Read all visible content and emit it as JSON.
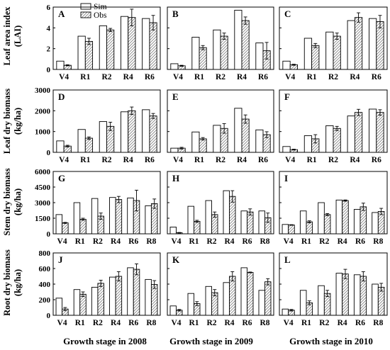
{
  "legend": {
    "sim": "Sim",
    "obs": "Obs"
  },
  "colors": {
    "sim_fill": "#ffffff",
    "obs_hatch": "#7f7f7f",
    "axis": "#000000"
  },
  "row_labels": [
    [
      "Leaf area index",
      "(LAI)"
    ],
    [
      "Leaf dry biomass",
      "(kg/ha)"
    ],
    [
      "Stem dry biomass",
      "(kg/ha)"
    ],
    [
      "Root dry biomass",
      "(kg/ha)"
    ]
  ],
  "column_xlabels": [
    "Growth stage in 2008",
    "Growth stage in 2009",
    "Growth stage in 2010"
  ],
  "chart_data": [
    {
      "type": "bar",
      "panel": "A",
      "row": 0,
      "col": 0,
      "categories": [
        "V4",
        "R1",
        "R2",
        "R4",
        "R6"
      ],
      "ylim": [
        0,
        6
      ],
      "yticks": [
        0,
        2,
        4,
        6
      ],
      "series": [
        {
          "name": "Sim",
          "values": [
            0.8,
            3.2,
            4.2,
            5.1,
            4.9
          ]
        },
        {
          "name": "Obs",
          "values": [
            0.4,
            2.7,
            3.8,
            5.0,
            4.5
          ],
          "error": [
            0.05,
            0.3,
            0.15,
            0.8,
            0.7
          ]
        }
      ]
    },
    {
      "type": "bar",
      "panel": "B",
      "row": 0,
      "col": 1,
      "categories": [
        "V4",
        "R1",
        "R2",
        "R4",
        "R6"
      ],
      "ylim": [
        0,
        6
      ],
      "yticks": [
        0,
        2,
        4,
        6
      ],
      "series": [
        {
          "name": "Sim",
          "values": [
            0.55,
            3.1,
            3.8,
            5.7,
            2.55
          ]
        },
        {
          "name": "Obs",
          "values": [
            0.35,
            2.1,
            3.2,
            4.7,
            1.8
          ],
          "error": [
            0.05,
            0.2,
            0.3,
            0.35,
            0.8
          ]
        }
      ]
    },
    {
      "type": "bar",
      "panel": "C",
      "row": 0,
      "col": 2,
      "categories": [
        "V4",
        "R1",
        "R2",
        "R4",
        "R6"
      ],
      "ylim": [
        0,
        6
      ],
      "yticks": [
        0,
        2,
        4,
        6
      ],
      "series": [
        {
          "name": "Sim",
          "values": [
            0.8,
            3.0,
            3.6,
            4.7,
            4.9
          ]
        },
        {
          "name": "Obs",
          "values": [
            0.45,
            2.3,
            3.2,
            5.0,
            4.6
          ],
          "error": [
            0.05,
            0.2,
            0.3,
            0.45,
            0.6
          ]
        }
      ]
    },
    {
      "type": "bar",
      "panel": "D",
      "row": 1,
      "col": 0,
      "categories": [
        "V4",
        "R1",
        "R2",
        "R4",
        "R6"
      ],
      "ylim": [
        0,
        3000
      ],
      "yticks": [
        0,
        1000,
        2000,
        3000
      ],
      "series": [
        {
          "name": "Sim",
          "values": [
            550,
            1100,
            1480,
            1950,
            2050
          ]
        },
        {
          "name": "Obs",
          "values": [
            300,
            680,
            1250,
            2000,
            1750
          ],
          "error": [
            40,
            60,
            200,
            180,
            120
          ]
        }
      ]
    },
    {
      "type": "bar",
      "panel": "E",
      "row": 1,
      "col": 1,
      "categories": [
        "V4",
        "R1",
        "R2",
        "R4",
        "R6"
      ],
      "ylim": [
        0,
        3000
      ],
      "yticks": [
        0,
        1000,
        2000,
        3000
      ],
      "series": [
        {
          "name": "Sim",
          "values": [
            200,
            980,
            1300,
            2120,
            1080
          ]
        },
        {
          "name": "Obs",
          "values": [
            200,
            650,
            1150,
            1600,
            850
          ],
          "error": [
            40,
            60,
            230,
            200,
            140
          ]
        }
      ]
    },
    {
      "type": "bar",
      "panel": "F",
      "row": 1,
      "col": 2,
      "categories": [
        "V4",
        "R1",
        "R2",
        "R4",
        "R6"
      ],
      "ylim": [
        0,
        3000
      ],
      "yticks": [
        0,
        1000,
        2000,
        3000
      ],
      "series": [
        {
          "name": "Sim",
          "values": [
            280,
            800,
            1280,
            1750,
            2080
          ]
        },
        {
          "name": "Obs",
          "values": [
            130,
            650,
            1150,
            1920,
            1920
          ],
          "error": [
            20,
            200,
            100,
            150,
            130
          ]
        }
      ]
    },
    {
      "type": "bar",
      "panel": "G",
      "row": 2,
      "col": 0,
      "categories": [
        "V4",
        "R1",
        "R2",
        "R4",
        "R6",
        "R8"
      ],
      "ylim": [
        0,
        6000
      ],
      "yticks": [
        0,
        1500,
        3000,
        4500,
        6000
      ],
      "series": [
        {
          "name": "Sim",
          "values": [
            1850,
            3000,
            3400,
            3500,
            3450,
            2700
          ]
        },
        {
          "name": "Obs",
          "values": [
            1050,
            1400,
            1700,
            3300,
            3200,
            2900
          ],
          "error": [
            50,
            100,
            300,
            300,
            1000,
            450
          ]
        }
      ]
    },
    {
      "type": "bar",
      "panel": "H",
      "row": 2,
      "col": 1,
      "categories": [
        "V4",
        "R1",
        "R2",
        "R4",
        "R6",
        "R8"
      ],
      "ylim": [
        0,
        6000
      ],
      "yticks": [
        0,
        1500,
        3000,
        4500,
        6000
      ],
      "series": [
        {
          "name": "Sim",
          "values": [
            650,
            2650,
            3200,
            4150,
            2200,
            2200
          ]
        },
        {
          "name": "Obs",
          "values": [
            100,
            1200,
            1850,
            3600,
            2100,
            1550
          ],
          "error": [
            30,
            100,
            250,
            550,
            300,
            450
          ]
        }
      ]
    },
    {
      "type": "bar",
      "panel": "I",
      "row": 2,
      "col": 2,
      "categories": [
        "V4",
        "R1",
        "R2",
        "R4",
        "R6",
        "R8"
      ],
      "ylim": [
        0,
        6000
      ],
      "yticks": [
        0,
        1500,
        3000,
        4500,
        6000
      ],
      "series": [
        {
          "name": "Sim",
          "values": [
            900,
            2200,
            3000,
            3250,
            2350,
            2050
          ]
        },
        {
          "name": "Obs",
          "values": [
            850,
            1150,
            1850,
            3200,
            2600,
            2150
          ],
          "error": [
            30,
            100,
            100,
            60,
            350,
            300
          ]
        }
      ]
    },
    {
      "type": "bar",
      "panel": "J",
      "row": 3,
      "col": 0,
      "categories": [
        "V4",
        "R1",
        "R2",
        "R4",
        "R6",
        "R8"
      ],
      "ylim": [
        0,
        800
      ],
      "yticks": [
        0,
        200,
        400,
        600,
        800
      ],
      "series": [
        {
          "name": "Sim",
          "values": [
            220,
            330,
            360,
            490,
            610,
            460
          ]
        },
        {
          "name": "Obs",
          "values": [
            80,
            270,
            410,
            500,
            590,
            395
          ],
          "error": [
            20,
            30,
            40,
            60,
            70,
            50
          ]
        }
      ]
    },
    {
      "type": "bar",
      "panel": "K",
      "row": 3,
      "col": 1,
      "categories": [
        "V4",
        "R1",
        "R2",
        "R4",
        "R6",
        "R8"
      ],
      "ylim": [
        0,
        800
      ],
      "yticks": [
        0,
        200,
        400,
        600,
        800
      ],
      "series": [
        {
          "name": "Sim",
          "values": [
            120,
            280,
            370,
            420,
            610,
            320
          ]
        },
        {
          "name": "Obs",
          "values": [
            65,
            150,
            290,
            500,
            550,
            430
          ],
          "error": [
            10,
            25,
            40,
            60,
            5,
            40
          ]
        }
      ]
    },
    {
      "type": "bar",
      "panel": "L",
      "row": 3,
      "col": 2,
      "categories": [
        "V4",
        "R1",
        "R2",
        "R4",
        "R6",
        "R8"
      ],
      "ylim": [
        0,
        800
      ],
      "yticks": [
        0,
        200,
        400,
        600,
        800
      ],
      "series": [
        {
          "name": "Sim",
          "values": [
            80,
            320,
            380,
            540,
            520,
            400
          ]
        },
        {
          "name": "Obs",
          "values": [
            65,
            160,
            280,
            530,
            500,
            360
          ],
          "error": [
            10,
            25,
            40,
            60,
            60,
            50
          ]
        }
      ]
    }
  ]
}
